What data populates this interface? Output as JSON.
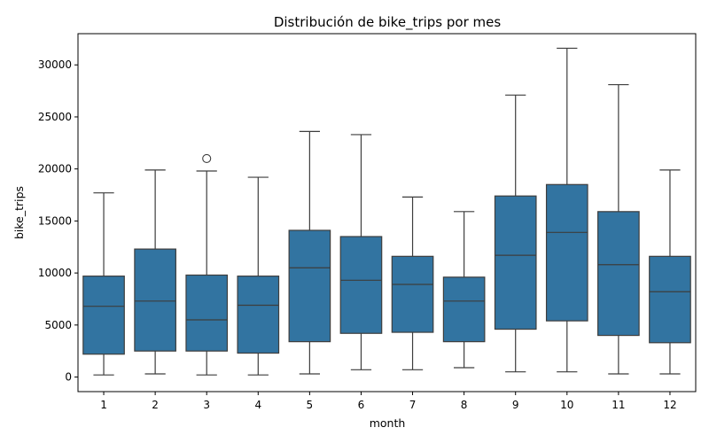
{
  "chart_data": {
    "type": "box",
    "title": "Distribución de bike_trips por mes",
    "xlabel": "month",
    "ylabel": "bike_trips",
    "categories": [
      "1",
      "2",
      "3",
      "4",
      "5",
      "6",
      "7",
      "8",
      "9",
      "10",
      "11",
      "12"
    ],
    "yticks": [
      0,
      5000,
      10000,
      15000,
      20000,
      25000,
      30000
    ],
    "ytick_labels": [
      "0",
      "5000",
      "10000",
      "15000",
      "20000",
      "25000",
      "30000"
    ],
    "ylim": [
      -1400,
      33000
    ],
    "grid": false,
    "box_color": "#3274a1",
    "line_color": "#3d3d3d",
    "boxes": [
      {
        "whisker_low": 200,
        "q1": 2200,
        "median": 6800,
        "q3": 9700,
        "whisker_high": 17700,
        "outliers": []
      },
      {
        "whisker_low": 300,
        "q1": 2500,
        "median": 7300,
        "q3": 12300,
        "whisker_high": 19900,
        "outliers": []
      },
      {
        "whisker_low": 200,
        "q1": 2500,
        "median": 5500,
        "q3": 9800,
        "whisker_high": 19800,
        "outliers": [
          21000
        ]
      },
      {
        "whisker_low": 200,
        "q1": 2300,
        "median": 6900,
        "q3": 9700,
        "whisker_high": 19200,
        "outliers": []
      },
      {
        "whisker_low": 300,
        "q1": 3400,
        "median": 10500,
        "q3": 14100,
        "whisker_high": 23600,
        "outliers": []
      },
      {
        "whisker_low": 700,
        "q1": 4200,
        "median": 9300,
        "q3": 13500,
        "whisker_high": 23300,
        "outliers": []
      },
      {
        "whisker_low": 700,
        "q1": 4300,
        "median": 8900,
        "q3": 11600,
        "whisker_high": 17300,
        "outliers": []
      },
      {
        "whisker_low": 900,
        "q1": 3400,
        "median": 7300,
        "q3": 9600,
        "whisker_high": 15900,
        "outliers": []
      },
      {
        "whisker_low": 500,
        "q1": 4600,
        "median": 11700,
        "q3": 17400,
        "whisker_high": 27100,
        "outliers": []
      },
      {
        "whisker_low": 500,
        "q1": 5400,
        "median": 13900,
        "q3": 18500,
        "whisker_high": 31600,
        "outliers": []
      },
      {
        "whisker_low": 300,
        "q1": 4000,
        "median": 10800,
        "q3": 15900,
        "whisker_high": 28100,
        "outliers": []
      },
      {
        "whisker_low": 300,
        "q1": 3300,
        "median": 8200,
        "q3": 11600,
        "whisker_high": 19900,
        "outliers": []
      }
    ]
  }
}
